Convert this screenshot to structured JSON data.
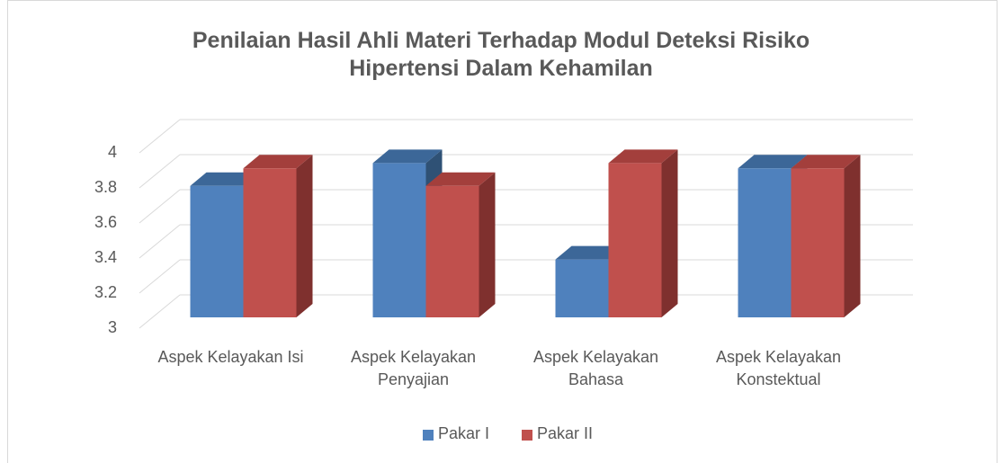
{
  "chart_data": {
    "type": "bar3d",
    "title": "Penilaian Hasil Ahli Materi Terhadap Modul Deteksi Risiko Hipertensi Dalam Kehamilan",
    "categories": [
      "Aspek Kelayakan Isi",
      "Aspek Kelayakan Penyajian",
      "Aspek Kelayakan Bahasa",
      "Aspek Kelayakan Konstektual"
    ],
    "series": [
      {
        "name": "Pakar I",
        "color": "#4f81bd",
        "values": [
          3.75,
          3.88,
          3.33,
          3.85
        ]
      },
      {
        "name": "Pakar II",
        "color": "#c0504d",
        "values": [
          3.85,
          3.75,
          3.88,
          3.85
        ]
      }
    ],
    "ylim": [
      3,
      4
    ],
    "yticks": [
      3,
      3.2,
      3.4,
      3.6,
      3.8,
      4
    ],
    "grid": true,
    "legend": "bottom"
  }
}
